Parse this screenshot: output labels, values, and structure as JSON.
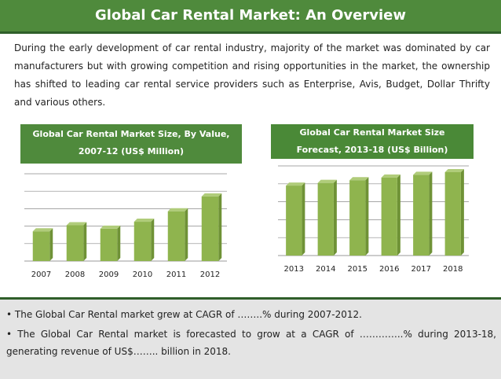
{
  "header": {
    "title": "Global Car Rental Market: An Overview"
  },
  "intro": {
    "text": "During the early development of car rental industry, majority of the market was dominated by car manufacturers but with growing competition and rising opportunities in the market, the ownership has shifted to leading car rental service providers such as Enterprise, Avis, Budget, Dollar Thrifty and various others."
  },
  "colors": {
    "header_green": "#4f8a3c",
    "bar_green": "#8fb44e",
    "bullet_bg": "#e4e4e4"
  },
  "chart_data": [
    {
      "type": "bar",
      "title": "Global Car Rental Market Size, By Value, 2007-12 (US$ Million)",
      "categories": [
        "2007",
        "2008",
        "2009",
        "2010",
        "2011",
        "2012"
      ],
      "values": [
        34,
        41,
        37,
        45,
        57,
        74
      ],
      "ylim": [
        0,
        100
      ],
      "grid": true
    },
    {
      "type": "bar",
      "title": "Global Car Rental Market Size Forecast, 2013-18 (US$ Billion)",
      "categories": [
        "2013",
        "2014",
        "2015",
        "2016",
        "2017",
        "2018"
      ],
      "values": [
        78,
        81,
        84,
        87,
        90,
        93
      ],
      "ylim": [
        0,
        100
      ],
      "grid": true
    }
  ],
  "chart_heads": {
    "left_line1": "Global Car Rental Market Size, By Value,",
    "left_line2": "2007-12 (US$ Million)",
    "right_line1": "Global Car Rental Market Size",
    "right_line2": "Forecast, 2013-18 (US$ Billion)"
  },
  "bullets": [
    "• The Global Car Rental market grew at CAGR of ……..% during 2007-2012.",
    "• The Global Car Rental market is forecasted to grow at a CAGR of …………..% during 2013-18, generating revenue of US$…….. billion in 2018."
  ]
}
